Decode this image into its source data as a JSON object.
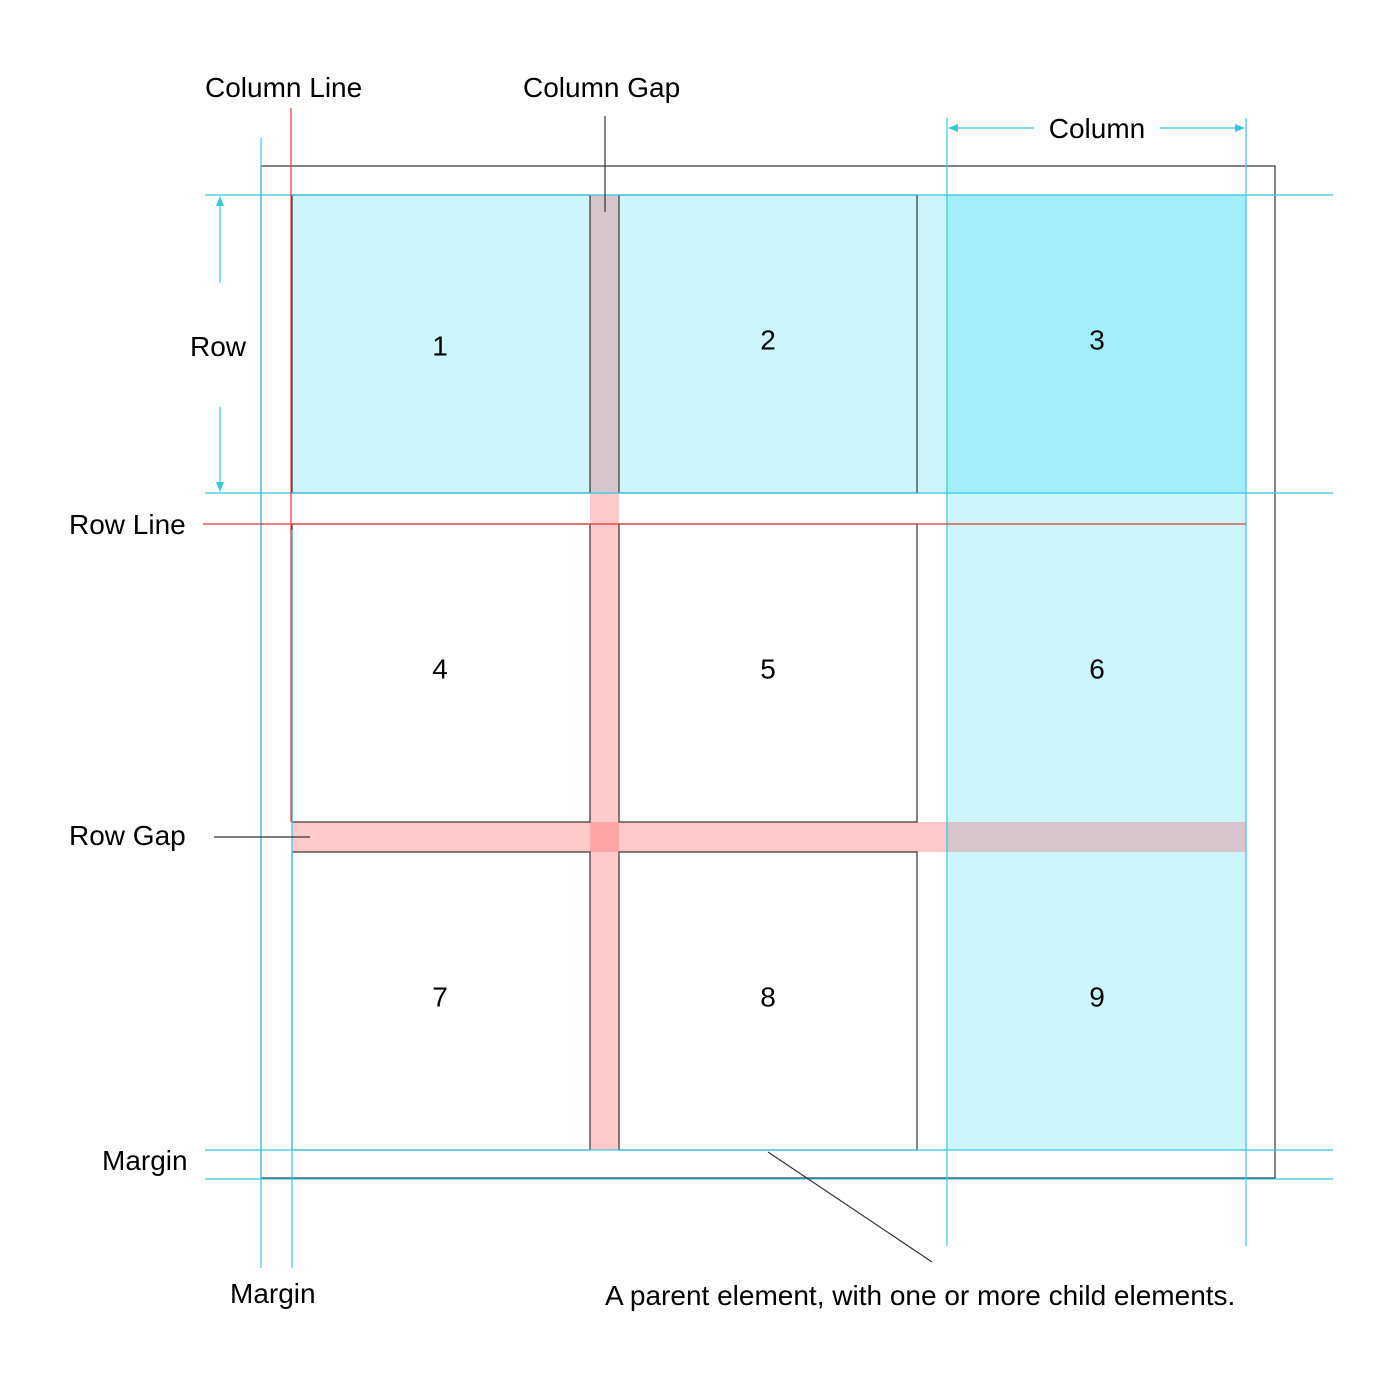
{
  "labels": {
    "column_line": "Column Line",
    "column_gap": "Column Gap",
    "column": "Column",
    "row": "Row",
    "row_line": "Row Line",
    "row_gap": "Row Gap",
    "margin_bottom": "Margin",
    "margin_left": "Margin",
    "parent_note": "A parent element, with one or more child elements."
  },
  "cells": [
    "1",
    "2",
    "3",
    "4",
    "5",
    "6",
    "7",
    "8",
    "9"
  ],
  "colors": {
    "cyan_guide": "#35c8e8",
    "red_line": "#e53935",
    "cell_light_cyan": "#ccf6fc",
    "cell_cyan": "#a2effb",
    "gap_pink": "#ffcaca",
    "gap_overlap": "#d6c5cb",
    "gap_intersection": "#ffa5a5",
    "outline": "#333333"
  }
}
